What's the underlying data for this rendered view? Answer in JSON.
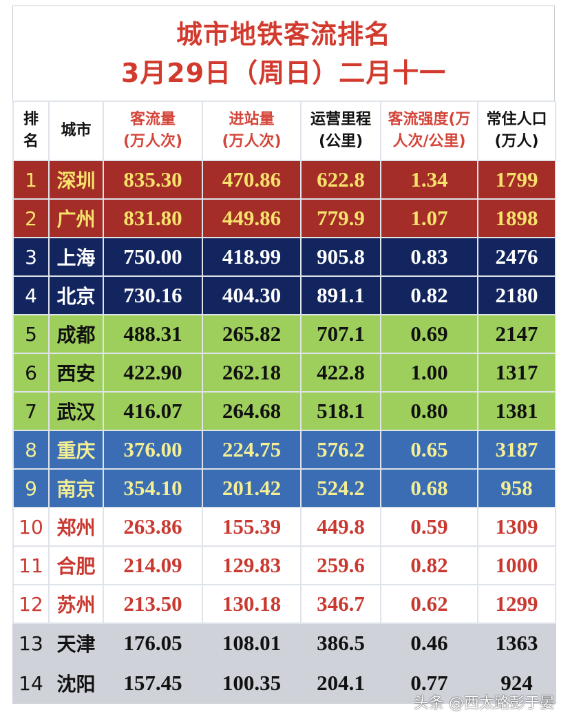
{
  "title": {
    "line1": "城市地铁客流排名",
    "line2": "3月29日（周日）二月十一"
  },
  "headers": {
    "rank": "排\n名",
    "rank_top": "排",
    "rank_bottom": "名",
    "city": "城市",
    "flow_top": "客流量",
    "flow_bottom": "(万人次)",
    "entry_top": "进站量",
    "entry_bottom": "(万人次)",
    "km_top": "运营里程",
    "km_bottom": "(公里)",
    "intensity_top": "客流强度(万",
    "intensity_bottom": "人次/公里)",
    "pop_top": "常住人口",
    "pop_bottom": "(万人)"
  },
  "colors": {
    "title_red": "#d23a2e",
    "tier1_bg": "#a42d28",
    "tier1_text": "#f7e36b",
    "tier2_bg": "#12255e",
    "tier2_text": "#ffffff",
    "tier3_bg": "#9ecf5c",
    "tier3_text": "#111111",
    "tier4_bg": "#3a6db3",
    "tier4_text": "#f4ee94",
    "tier5_bg": "#ffffff",
    "tier5_text": "#c93930",
    "tier6_bg": "#cfd2d8",
    "tier6_text": "#111111"
  },
  "rows": [
    {
      "rank": "1",
      "city": "深圳",
      "flow": "835.30",
      "entry": "470.86",
      "km": "622.8",
      "intensity": "1.34",
      "pop": "1799"
    },
    {
      "rank": "2",
      "city": "广州",
      "flow": "831.80",
      "entry": "449.86",
      "km": "779.9",
      "intensity": "1.07",
      "pop": "1898"
    },
    {
      "rank": "3",
      "city": "上海",
      "flow": "750.00",
      "entry": "418.99",
      "km": "905.8",
      "intensity": "0.83",
      "pop": "2476"
    },
    {
      "rank": "4",
      "city": "北京",
      "flow": "730.16",
      "entry": "404.30",
      "km": "891.1",
      "intensity": "0.82",
      "pop": "2180"
    },
    {
      "rank": "5",
      "city": "成都",
      "flow": "488.31",
      "entry": "265.82",
      "km": "707.1",
      "intensity": "0.69",
      "pop": "2147"
    },
    {
      "rank": "6",
      "city": "西安",
      "flow": "422.90",
      "entry": "262.18",
      "km": "422.8",
      "intensity": "1.00",
      "pop": "1317"
    },
    {
      "rank": "7",
      "city": "武汉",
      "flow": "416.07",
      "entry": "264.68",
      "km": "518.1",
      "intensity": "0.80",
      "pop": "1381"
    },
    {
      "rank": "8",
      "city": "重庆",
      "flow": "376.00",
      "entry": "224.75",
      "km": "576.2",
      "intensity": "0.65",
      "pop": "3187"
    },
    {
      "rank": "9",
      "city": "南京",
      "flow": "354.10",
      "entry": "201.42",
      "km": "524.2",
      "intensity": "0.68",
      "pop": "958"
    },
    {
      "rank": "10",
      "city": "郑州",
      "flow": "263.86",
      "entry": "155.39",
      "km": "449.8",
      "intensity": "0.59",
      "pop": "1309"
    },
    {
      "rank": "11",
      "city": "合肥",
      "flow": "214.09",
      "entry": "129.83",
      "km": "259.6",
      "intensity": "0.82",
      "pop": "1000"
    },
    {
      "rank": "12",
      "city": "苏州",
      "flow": "213.50",
      "entry": "130.18",
      "km": "346.7",
      "intensity": "0.62",
      "pop": "1299"
    },
    {
      "rank": "13",
      "city": "天津",
      "flow": "176.05",
      "entry": "108.01",
      "km": "386.5",
      "intensity": "0.46",
      "pop": "1363"
    },
    {
      "rank": "14",
      "city": "沈阳",
      "flow": "157.45",
      "entry": "100.35",
      "km": "204.1",
      "intensity": "0.77",
      "pop": "924"
    }
  ],
  "watermark": "头条 @西太路彭于晏"
}
